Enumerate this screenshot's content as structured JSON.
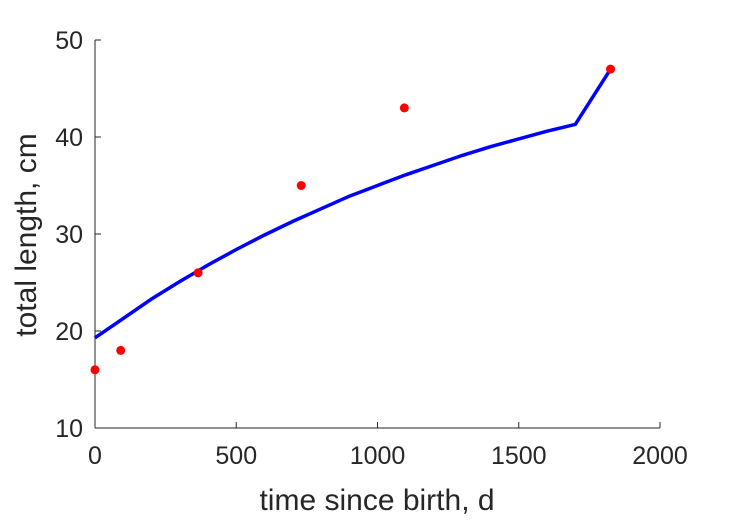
{
  "chart_data": {
    "type": "scatter",
    "title": "",
    "xlabel": "time since birth, d",
    "ylabel": "total length, cm",
    "xlim": [
      0,
      2000
    ],
    "ylim": [
      10,
      50
    ],
    "xticks": [
      0,
      500,
      1000,
      1500,
      2000
    ],
    "yticks": [
      10,
      20,
      30,
      40,
      50
    ],
    "grid": false,
    "series": [
      {
        "kind": "points",
        "color": "#ff0000",
        "x": [
          0,
          91,
          365,
          730,
          1095,
          1825
        ],
        "y": [
          16,
          18,
          26,
          35,
          43,
          47
        ]
      },
      {
        "kind": "line",
        "color": "#0000ff",
        "x": [
          0,
          100,
          200,
          300,
          400,
          500,
          600,
          700,
          800,
          900,
          1000,
          1100,
          1200,
          1300,
          1400,
          1500,
          1600,
          1700,
          1825
        ],
        "y": [
          19.3,
          21.3,
          23.3,
          25.1,
          26.8,
          28.4,
          29.9,
          31.3,
          32.6,
          33.9,
          35.0,
          36.1,
          37.1,
          38.1,
          39.0,
          39.8,
          40.6,
          41.3,
          47.0
        ]
      }
    ]
  }
}
